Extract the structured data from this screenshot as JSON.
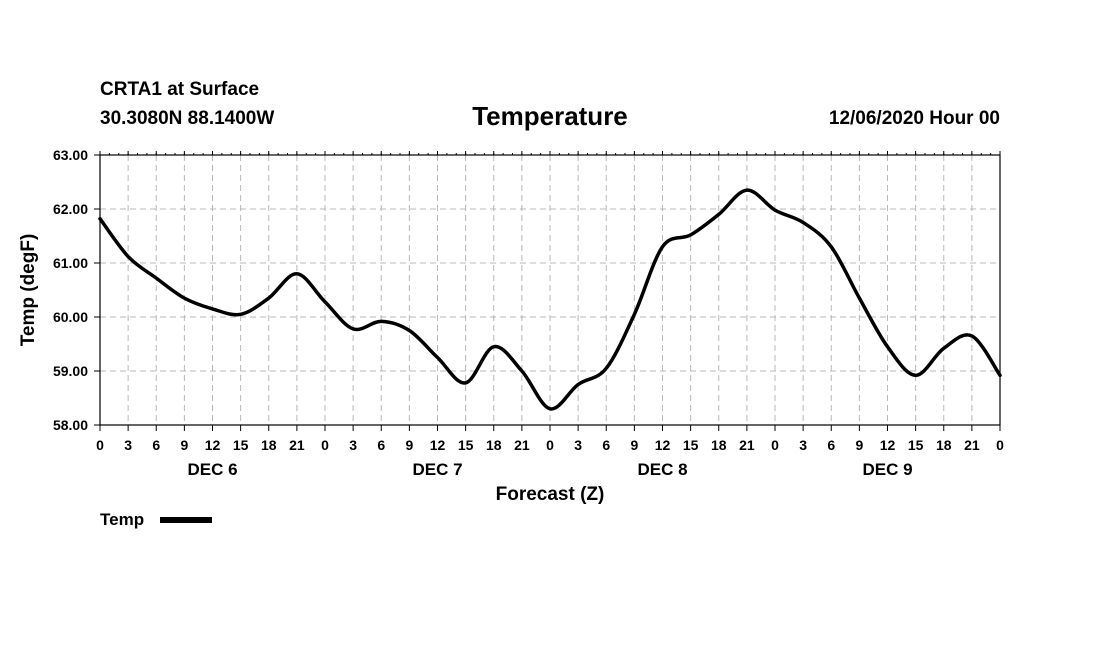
{
  "chart_data": {
    "type": "line",
    "station": "CRTA1 at Surface",
    "location": "30.3080N 88.1400W",
    "title": "Temperature",
    "run": "12/06/2020 Hour 00",
    "xlabel": "Forecast (Z)",
    "ylabel": "Temp (degF)",
    "ylim": [
      58,
      63
    ],
    "xlim": [
      "2020-12-06T00Z",
      "2020-12-10T00Z"
    ],
    "grid": true,
    "legend_position": "bottom-left",
    "y_ticks": [
      "58.00",
      "59.00",
      "60.00",
      "61.00",
      "62.00",
      "63.00"
    ],
    "x_tick_labels": [
      "0",
      "3",
      "6",
      "9",
      "12",
      "15",
      "18",
      "21",
      "0",
      "3",
      "6",
      "9",
      "12",
      "15",
      "18",
      "21",
      "0",
      "3",
      "6",
      "9",
      "12",
      "15",
      "18",
      "21",
      "0",
      "3",
      "6",
      "9",
      "12",
      "15",
      "18",
      "21",
      "0"
    ],
    "day_labels": [
      {
        "date": "2020-12-06T12Z",
        "label": "DEC 6"
      },
      {
        "date": "2020-12-07T12Z",
        "label": "DEC 7"
      },
      {
        "date": "2020-12-08T12Z",
        "label": "DEC 8"
      },
      {
        "date": "2020-12-09T12Z",
        "label": "DEC 9"
      }
    ],
    "series": [
      {
        "name": "Temp",
        "color": "#000000",
        "points": [
          {
            "x": "2020-12-06T00Z",
            "y": 61.82
          },
          {
            "x": "2020-12-06T03Z",
            "y": 61.12
          },
          {
            "x": "2020-12-06T06Z",
            "y": 60.72
          },
          {
            "x": "2020-12-06T09Z",
            "y": 60.35
          },
          {
            "x": "2020-12-06T12Z",
            "y": 60.15
          },
          {
            "x": "2020-12-06T15Z",
            "y": 60.05
          },
          {
            "x": "2020-12-06T18Z",
            "y": 60.35
          },
          {
            "x": "2020-12-06T21Z",
            "y": 60.8
          },
          {
            "x": "2020-12-07T00Z",
            "y": 60.28
          },
          {
            "x": "2020-12-07T03Z",
            "y": 59.78
          },
          {
            "x": "2020-12-07T06Z",
            "y": 59.92
          },
          {
            "x": "2020-12-07T09Z",
            "y": 59.75
          },
          {
            "x": "2020-12-07T12Z",
            "y": 59.25
          },
          {
            "x": "2020-12-07T15Z",
            "y": 58.78
          },
          {
            "x": "2020-12-07T18Z",
            "y": 59.45
          },
          {
            "x": "2020-12-07T21Z",
            "y": 59.0
          },
          {
            "x": "2020-12-08T00Z",
            "y": 58.3
          },
          {
            "x": "2020-12-08T03Z",
            "y": 58.75
          },
          {
            "x": "2020-12-08T06Z",
            "y": 59.05
          },
          {
            "x": "2020-12-08T09Z",
            "y": 60.05
          },
          {
            "x": "2020-12-08T12Z",
            "y": 61.3
          },
          {
            "x": "2020-12-08T15Z",
            "y": 61.52
          },
          {
            "x": "2020-12-08T18Z",
            "y": 61.9
          },
          {
            "x": "2020-12-08T21Z",
            "y": 62.35
          },
          {
            "x": "2020-12-09T00Z",
            "y": 61.98
          },
          {
            "x": "2020-12-09T03Z",
            "y": 61.75
          },
          {
            "x": "2020-12-09T06Z",
            "y": 61.3
          },
          {
            "x": "2020-12-09T09Z",
            "y": 60.35
          },
          {
            "x": "2020-12-09T12Z",
            "y": 59.45
          },
          {
            "x": "2020-12-09T15Z",
            "y": 58.92
          },
          {
            "x": "2020-12-09T18Z",
            "y": 59.42
          },
          {
            "x": "2020-12-09T21Z",
            "y": 59.65
          },
          {
            "x": "2020-12-10T00Z",
            "y": 58.92
          }
        ]
      }
    ]
  }
}
